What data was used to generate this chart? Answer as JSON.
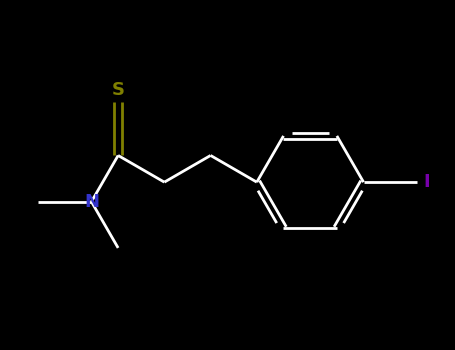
{
  "background_color": "#000000",
  "bond_color": "#ffffff",
  "S_color": "#808000",
  "N_color": "#3333cc",
  "I_color": "#7700aa",
  "S_label": "S",
  "N_label": "N",
  "I_label": "I",
  "line_width": 2.0,
  "font_size": 13,
  "figsize": [
    4.55,
    3.5
  ],
  "dpi": 100
}
